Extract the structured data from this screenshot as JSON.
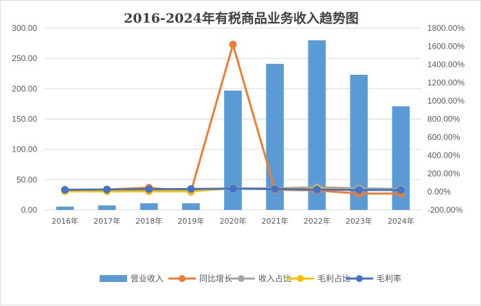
{
  "chart_data": {
    "type": "bar+line",
    "title": "2016-2024年有税商品业务收入趋势图",
    "categories": [
      "2016年",
      "2017年",
      "2018年",
      "2019年",
      "2020年",
      "2021年",
      "2022年",
      "2023年",
      "2024年"
    ],
    "left_axis": {
      "ylim": [
        0,
        300
      ],
      "ticks": [
        "0.00",
        "50.00",
        "100.00",
        "150.00",
        "200.00",
        "250.00",
        "300.00"
      ]
    },
    "right_axis": {
      "ylim": [
        -200,
        1800
      ],
      "ticks": [
        "-200.00%",
        "0.00%",
        "200.00%",
        "400.00%",
        "600.00%",
        "800.00%",
        "1000.00%",
        "1200.00%",
        "1400.00%",
        "1600.00%",
        "1800.00%"
      ]
    },
    "grid": "horizontal",
    "legend_position": "bottom",
    "series": [
      {
        "name": "营业收入",
        "kind": "bar",
        "axis": "left",
        "color": "#5B9BD5",
        "values": [
          5.5,
          7.5,
          11,
          11,
          197,
          241,
          280,
          223,
          171
        ]
      },
      {
        "name": "同比增长",
        "kind": "line",
        "axis": "right",
        "color": "#ED7D31",
        "values": [
          15,
          25,
          45,
          0,
          1620,
          22,
          15,
          -20,
          -20
        ]
      },
      {
        "name": "收入占比",
        "kind": "line",
        "axis": "right",
        "color": "#A5A5A5",
        "values": [
          20,
          20,
          20,
          25,
          38,
          38,
          50,
          38,
          30
        ]
      },
      {
        "name": "毛利占比",
        "kind": "line",
        "axis": "right",
        "color": "#FFC000",
        "values": [
          5,
          5,
          5,
          5,
          38,
          30,
          35,
          22,
          20
        ]
      },
      {
        "name": "毛利率",
        "kind": "line",
        "axis": "right",
        "color": "#4472C4",
        "values": [
          22,
          25,
          28,
          30,
          35,
          30,
          25,
          20,
          20
        ]
      }
    ]
  }
}
